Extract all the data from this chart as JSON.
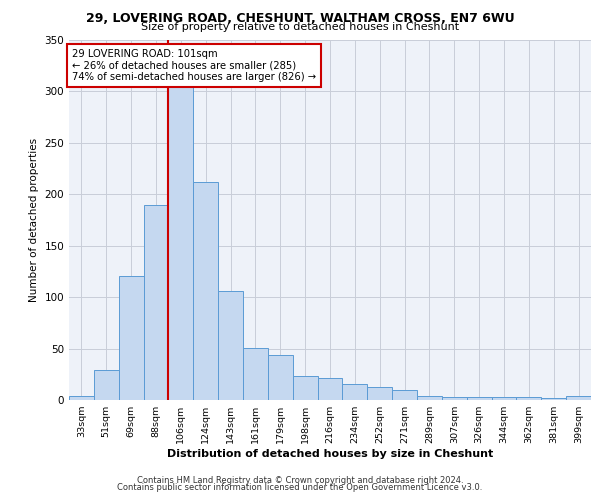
{
  "title1": "29, LOVERING ROAD, CHESHUNT, WALTHAM CROSS, EN7 6WU",
  "title2": "Size of property relative to detached houses in Cheshunt",
  "xlabel": "Distribution of detached houses by size in Cheshunt",
  "ylabel": "Number of detached properties",
  "categories": [
    "33sqm",
    "51sqm",
    "69sqm",
    "88sqm",
    "106sqm",
    "124sqm",
    "143sqm",
    "161sqm",
    "179sqm",
    "198sqm",
    "216sqm",
    "234sqm",
    "252sqm",
    "271sqm",
    "289sqm",
    "307sqm",
    "326sqm",
    "344sqm",
    "362sqm",
    "381sqm",
    "399sqm"
  ],
  "values": [
    4,
    29,
    121,
    190,
    330,
    212,
    106,
    51,
    44,
    23,
    21,
    16,
    13,
    10,
    4,
    3,
    3,
    3,
    3,
    2,
    4
  ],
  "bar_color": "#c5d8f0",
  "bar_edge_color": "#5b9bd5",
  "vline_index": 4.0,
  "property_label": "29 LOVERING ROAD: 101sqm",
  "annotation_line1": "← 26% of detached houses are smaller (285)",
  "annotation_line2": "74% of semi-detached houses are larger (826) →",
  "vline_color": "#cc0000",
  "annotation_box_color": "#ffffff",
  "annotation_box_edge": "#cc0000",
  "footer1": "Contains HM Land Registry data © Crown copyright and database right 2024.",
  "footer2": "Contains public sector information licensed under the Open Government Licence v3.0.",
  "bg_color": "#eef2f9",
  "grid_color": "#c8cdd8",
  "ylim": [
    0,
    350
  ]
}
